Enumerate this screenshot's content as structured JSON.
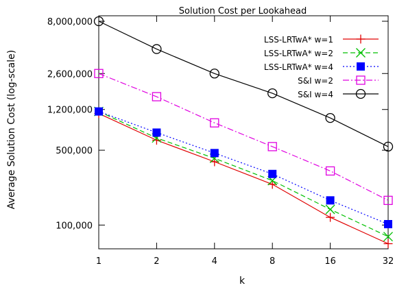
{
  "chart_data": {
    "type": "line",
    "title": "Solution Cost per Lookahead",
    "xlabel": "k",
    "ylabel": "Average Solution Cost (log-scale)",
    "x_scale": "log2",
    "y_scale": "log",
    "x_ticks": [
      1,
      2,
      4,
      8,
      16,
      32
    ],
    "y_ticks": [
      100000,
      500000,
      1200000,
      2600000,
      8000000
    ],
    "y_tick_labels": [
      "100,000",
      "500,000",
      "1,200,000",
      "2,600,000",
      "8,000,000"
    ],
    "xlim": [
      1,
      32
    ],
    "ylim": [
      60000,
      9000000
    ],
    "grid": false,
    "legend_position": "top-right",
    "series": [
      {
        "name": "LSS-LRTwA* w=1",
        "color": "#e00000",
        "dash": "solid",
        "marker": "plus",
        "x": [
          1,
          2,
          4,
          8,
          16,
          32
        ],
        "y": [
          1100000,
          620000,
          390000,
          240000,
          118000,
          67000
        ]
      },
      {
        "name": "LSS-LRTwA* w=2",
        "color": "#00c000",
        "dash": "dashed",
        "marker": "cross",
        "x": [
          1,
          2,
          4,
          8,
          16,
          32
        ],
        "y": [
          1150000,
          650000,
          420000,
          260000,
          140000,
          78000
        ]
      },
      {
        "name": "LSS-LRTwA* w=4",
        "color": "#0000ff",
        "dash": "dotted",
        "marker": "filled-square",
        "x": [
          1,
          2,
          4,
          8,
          16,
          32
        ],
        "y": [
          1150000,
          730000,
          470000,
          300000,
          170000,
          102000
        ]
      },
      {
        "name": "S&I w=2",
        "color": "#e000e0",
        "dash": "dashdot",
        "marker": "open-square",
        "x": [
          1,
          2,
          4,
          8,
          16,
          32
        ],
        "y": [
          2600000,
          1580000,
          900000,
          540000,
          320000,
          170000
        ]
      },
      {
        "name": "S&I w=4",
        "color": "#000000",
        "dash": "solid",
        "marker": "open-circle",
        "x": [
          1,
          2,
          4,
          8,
          16,
          32
        ],
        "y": [
          8000000,
          4400000,
          2600000,
          1700000,
          1000000,
          540000
        ]
      }
    ]
  }
}
